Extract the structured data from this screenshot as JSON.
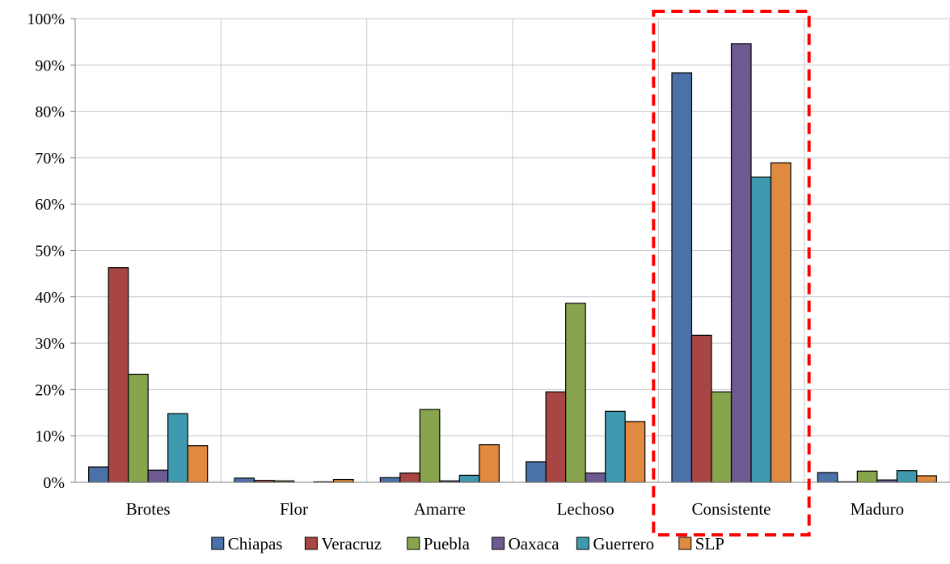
{
  "chart_data": {
    "type": "bar",
    "categories": [
      "Brotes",
      "Flor",
      "Amarre",
      "Lechoso",
      "Consistente",
      "Maduro"
    ],
    "series": [
      {
        "name": "Chiapas",
        "color": "#4A72A8",
        "values": [
          3.3,
          0.9,
          1.0,
          4.4,
          88.3,
          2.1
        ]
      },
      {
        "name": "Veracruz",
        "color": "#A84644",
        "values": [
          46.3,
          0.4,
          2.0,
          19.5,
          31.7,
          0.1
        ]
      },
      {
        "name": "Puebla",
        "color": "#88A54D",
        "values": [
          23.3,
          0.3,
          15.7,
          38.6,
          19.5,
          2.4
        ]
      },
      {
        "name": "Oaxaca",
        "color": "#6D5A91",
        "values": [
          2.6,
          0.0,
          0.3,
          2.0,
          94.6,
          0.5
        ]
      },
      {
        "name": "Guerrero",
        "color": "#3F9AB0",
        "values": [
          14.8,
          0.1,
          1.5,
          15.3,
          65.8,
          2.5
        ]
      },
      {
        "name": "SLP",
        "color": "#DF8A3E",
        "values": [
          7.9,
          0.6,
          8.1,
          13.1,
          68.9,
          1.4
        ]
      }
    ],
    "ylim": [
      0,
      100
    ],
    "yticks": [
      "0%",
      "10%",
      "20%",
      "30%",
      "40%",
      "50%",
      "60%",
      "70%",
      "80%",
      "90%",
      "100%"
    ],
    "grid": true,
    "legend": "bottom",
    "highlight": {
      "category": "Consistente",
      "style": "dashed",
      "color": "#FF0000"
    }
  }
}
